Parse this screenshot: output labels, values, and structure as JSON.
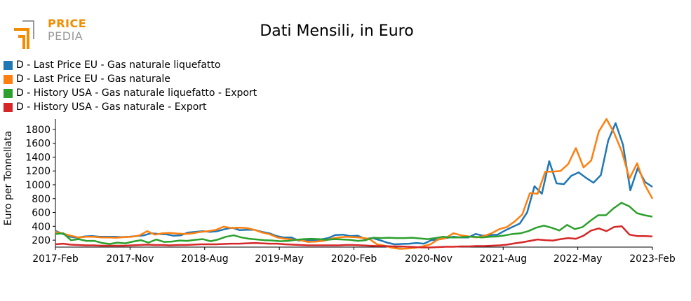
{
  "brand": {
    "line1": "PRICE",
    "line2": "PEDIA",
    "accent": "#f28c00",
    "muted": "#9a9a9a"
  },
  "chart_data": {
    "type": "line",
    "title": "Dati Mensili, in Euro",
    "xlabel": "",
    "ylabel": "Euro per Tonnellata",
    "ylim": [
      100,
      1950
    ],
    "yticks": [
      200,
      400,
      600,
      800,
      1000,
      1200,
      1400,
      1600,
      1800
    ],
    "xtick_labels": [
      "2017-Feb",
      "2017-Nov",
      "2018-Aug",
      "2019-May",
      "2020-Feb",
      "2020-Nov",
      "2021-Aug",
      "2022-May",
      "2023-Feb"
    ],
    "x_start": "2017-Feb",
    "x_end": "2023-Feb",
    "grid": false,
    "legend_position": "top-left",
    "series": [
      {
        "name": "D - Last Price EU - Gas naturale liquefatto",
        "color": "#1f77b4",
        "values": [
          335,
          290,
          250,
          235,
          255,
          260,
          250,
          250,
          250,
          245,
          250,
          260,
          270,
          300,
          290,
          285,
          265,
          270,
          310,
          320,
          330,
          320,
          330,
          360,
          380,
          345,
          350,
          350,
          320,
          300,
          260,
          240,
          240,
          195,
          200,
          200,
          210,
          230,
          275,
          280,
          260,
          265,
          220,
          230,
          200,
          165,
          140,
          145,
          150,
          160,
          150,
          200,
          210,
          230,
          250,
          240,
          240,
          290,
          265,
          275,
          280,
          340,
          390,
          440,
          600,
          980,
          870,
          1340,
          1020,
          1010,
          1130,
          1180,
          1100,
          1030,
          1140,
          1640,
          1890,
          1580,
          920,
          1240,
          1040,
          970
        ]
      },
      {
        "name": "D - Last Price EU - Gas naturale",
        "color": "#ff7f0e",
        "values": [
          320,
          295,
          265,
          240,
          250,
          250,
          240,
          240,
          235,
          245,
          250,
          270,
          330,
          280,
          300,
          305,
          295,
          290,
          300,
          320,
          330,
          350,
          395,
          375,
          380,
          375,
          350,
          310,
          285,
          240,
          220,
          210,
          200,
          175,
          180,
          190,
          220,
          240,
          250,
          245,
          235,
          220,
          140,
          120,
          90,
          75,
          80,
          90,
          110,
          140,
          210,
          230,
          300,
          270,
          255,
          240,
          260,
          300,
          360,
          390,
          470,
          570,
          880,
          870,
          1190,
          1190,
          1200,
          1300,
          1530,
          1250,
          1350,
          1770,
          1950,
          1750,
          1480,
          1090,
          1310,
          1000,
          800
        ]
      },
      {
        "name": "D - History USA - Gas naturale liquefatto - Export",
        "color": "#2ca02c",
        "values": [
          290,
          300,
          200,
          215,
          190,
          190,
          160,
          145,
          165,
          155,
          180,
          200,
          165,
          210,
          175,
          180,
          195,
          190,
          205,
          215,
          185,
          210,
          250,
          270,
          240,
          220,
          210,
          200,
          195,
          185,
          190,
          205,
          215,
          220,
          215,
          205,
          215,
          210,
          205,
          190,
          200,
          235,
          230,
          235,
          230,
          230,
          235,
          225,
          215,
          230,
          250,
          240,
          240,
          250,
          250,
          240,
          250,
          255,
          270,
          290,
          300,
          330,
          380,
          410,
          380,
          340,
          420,
          360,
          390,
          480,
          560,
          560,
          660,
          740,
          690,
          590,
          560,
          540
        ]
      },
      {
        "name": "D - History USA - Gas naturale - Export",
        "color": "#d62728",
        "values": [
          140,
          150,
          135,
          130,
          125,
          125,
          120,
          120,
          120,
          120,
          125,
          130,
          135,
          130,
          130,
          125,
          130,
          130,
          135,
          140,
          140,
          140,
          145,
          150,
          150,
          155,
          160,
          155,
          150,
          150,
          140,
          135,
          130,
          125,
          125,
          125,
          125,
          125,
          130,
          130,
          125,
          120,
          115,
          115,
          110,
          110,
          105,
          100,
          95,
          95,
          100,
          105,
          105,
          110,
          110,
          115,
          115,
          120,
          125,
          135,
          155,
          170,
          190,
          210,
          200,
          195,
          215,
          230,
          220,
          265,
          340,
          370,
          330,
          390,
          400,
          280,
          260,
          260,
          255
        ]
      }
    ]
  }
}
